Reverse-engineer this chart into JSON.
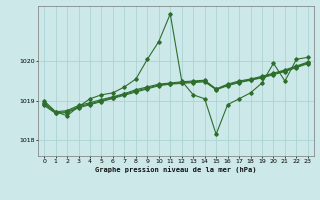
{
  "title": "Graphe pression niveau de la mer (hPa)",
  "bg_color": "#cce8e8",
  "grid_color": "#aad4d4",
  "line_color": "#2d6e2d",
  "ylim": [
    1017.6,
    1021.4
  ],
  "yticks": [
    1018,
    1019,
    1020
  ],
  "xlim": [
    -0.5,
    23.5
  ],
  "xticks": [
    0,
    1,
    2,
    3,
    4,
    5,
    6,
    7,
    8,
    9,
    10,
    11,
    12,
    13,
    14,
    15,
    16,
    17,
    18,
    19,
    20,
    21,
    22,
    23
  ],
  "s1": [
    1019.0,
    1018.72,
    1018.62,
    1018.85,
    1019.05,
    1019.15,
    1019.2,
    1019.35,
    1019.55,
    1020.05,
    1020.5,
    1021.2,
    1019.5,
    1019.15,
    1019.05,
    1018.15,
    1018.9,
    1019.05,
    1019.2,
    1019.45,
    1019.95,
    1019.5,
    1020.05,
    1020.1
  ],
  "s2": [
    1018.95,
    1018.72,
    1018.75,
    1018.88,
    1018.95,
    1019.03,
    1019.1,
    1019.18,
    1019.28,
    1019.35,
    1019.42,
    1019.45,
    1019.48,
    1019.5,
    1019.52,
    1019.3,
    1019.42,
    1019.5,
    1019.55,
    1019.62,
    1019.7,
    1019.78,
    1019.88,
    1019.98
  ],
  "s3": [
    1018.88,
    1018.68,
    1018.7,
    1018.82,
    1018.9,
    1018.98,
    1019.06,
    1019.14,
    1019.22,
    1019.3,
    1019.38,
    1019.42,
    1019.44,
    1019.46,
    1019.48,
    1019.28,
    1019.38,
    1019.46,
    1019.52,
    1019.58,
    1019.66,
    1019.74,
    1019.84,
    1019.94
  ],
  "s4": [
    1018.92,
    1018.7,
    1018.72,
    1018.85,
    1018.92,
    1019.0,
    1019.08,
    1019.16,
    1019.25,
    1019.32,
    1019.4,
    1019.43,
    1019.46,
    1019.48,
    1019.5,
    1019.29,
    1019.4,
    1019.48,
    1019.53,
    1019.6,
    1019.68,
    1019.76,
    1019.86,
    1019.96
  ]
}
